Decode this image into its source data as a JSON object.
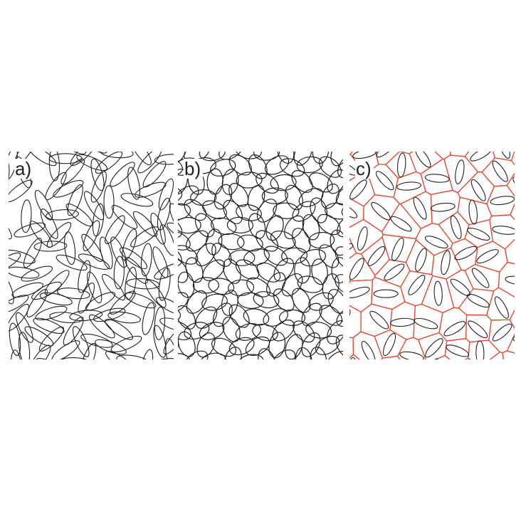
{
  "panels": [
    {
      "label": "a)",
      "style": "sparse"
    },
    {
      "label": "b)",
      "style": "dense"
    },
    {
      "label": "c)",
      "style": "voronoi"
    }
  ],
  "colors": {
    "ellipse_stroke": "#231f20",
    "voronoi_stroke": "#e8432a",
    "background": "#ffffff"
  }
}
